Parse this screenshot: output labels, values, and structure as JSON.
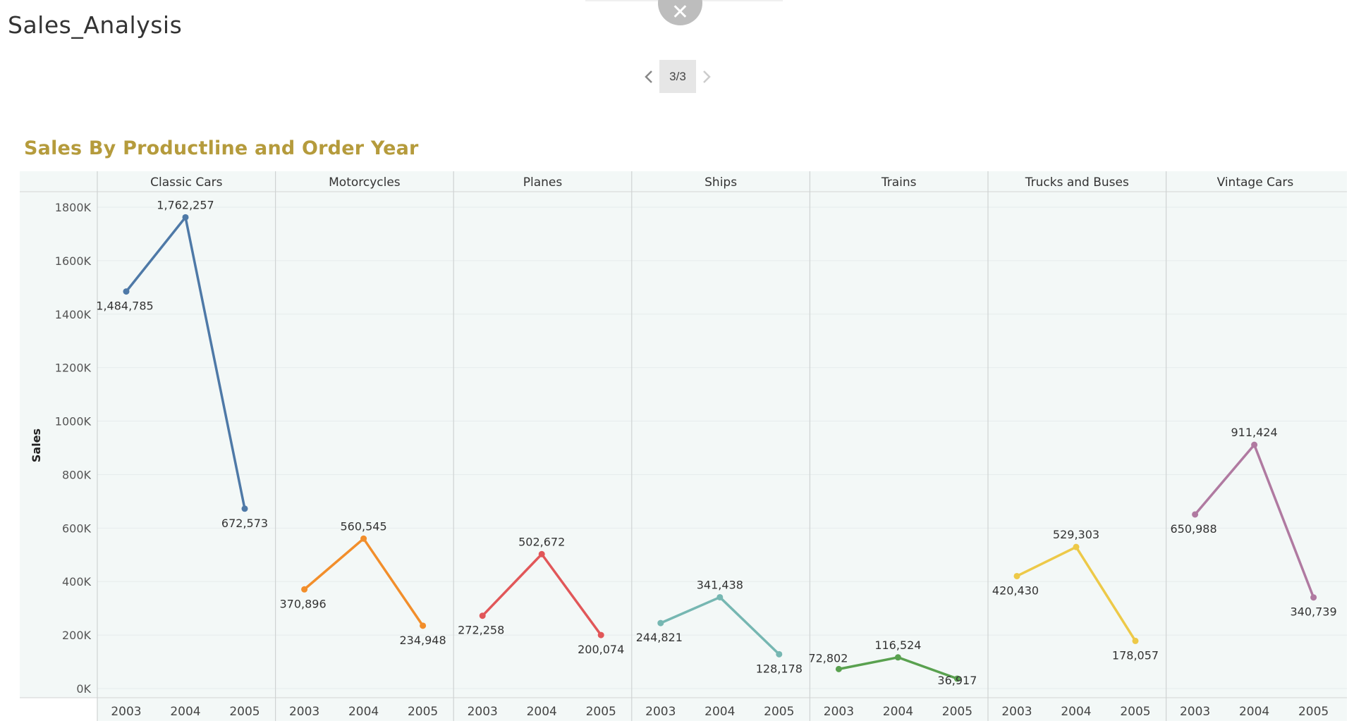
{
  "app": {
    "title": "Sales_Analysis",
    "close_icon": "close-icon"
  },
  "pager": {
    "indicator": "3/3",
    "prev_icon": "chevron-left-icon",
    "next_icon": "chevron-right-icon"
  },
  "chart_data": {
    "type": "line",
    "title": "Sales By Productline and Order Year",
    "ylabel": "Sales",
    "ylim": [
      0,
      1850000
    ],
    "yticks": [
      0,
      200000,
      400000,
      600000,
      800000,
      1000000,
      1200000,
      1400000,
      1600000,
      1800000
    ],
    "ytick_labels": [
      "0K",
      "200K",
      "400K",
      "600K",
      "800K",
      "1000K",
      "1200K",
      "1400K",
      "1600K",
      "1800K"
    ],
    "grid": true,
    "panels": [
      {
        "name": "Classic Cars",
        "color": "#4e79a7",
        "x": [
          "2003",
          "2004",
          "2005"
        ],
        "values": [
          1484785,
          1762257,
          672573
        ],
        "labels": [
          "1,484,785",
          "1,762,257",
          "672,573"
        ]
      },
      {
        "name": "Motorcycles",
        "color": "#f28e2b",
        "x": [
          "2003",
          "2004",
          "2005"
        ],
        "values": [
          370896,
          560545,
          234948
        ],
        "labels": [
          "370,896",
          "560,545",
          "234,948"
        ]
      },
      {
        "name": "Planes",
        "color": "#e15759",
        "x": [
          "2003",
          "2004",
          "2005"
        ],
        "values": [
          272258,
          502672,
          200074
        ],
        "labels": [
          "272,258",
          "502,672",
          "200,074"
        ]
      },
      {
        "name": "Ships",
        "color": "#76b7b2",
        "x": [
          "2003",
          "2004",
          "2005"
        ],
        "values": [
          244821,
          341438,
          128178
        ],
        "labels": [
          "244,821",
          "341,438",
          "128,178"
        ]
      },
      {
        "name": "Trains",
        "color": "#59a14f",
        "x": [
          "2003",
          "2004",
          "2005"
        ],
        "values": [
          72802,
          116524,
          36917
        ],
        "labels": [
          "72,802",
          "116,524",
          "36,917"
        ]
      },
      {
        "name": "Trucks and Buses",
        "color": "#edc948",
        "x": [
          "2003",
          "2004",
          "2005"
        ],
        "values": [
          420430,
          529303,
          178057
        ],
        "labels": [
          "420,430",
          "529,303",
          "178,057"
        ]
      },
      {
        "name": "Vintage Cars",
        "color": "#b07aa1",
        "x": [
          "2003",
          "2004",
          "2005"
        ],
        "values": [
          650988,
          911424,
          340739
        ],
        "labels": [
          "650,988",
          "911,424",
          "340,739"
        ]
      }
    ]
  }
}
